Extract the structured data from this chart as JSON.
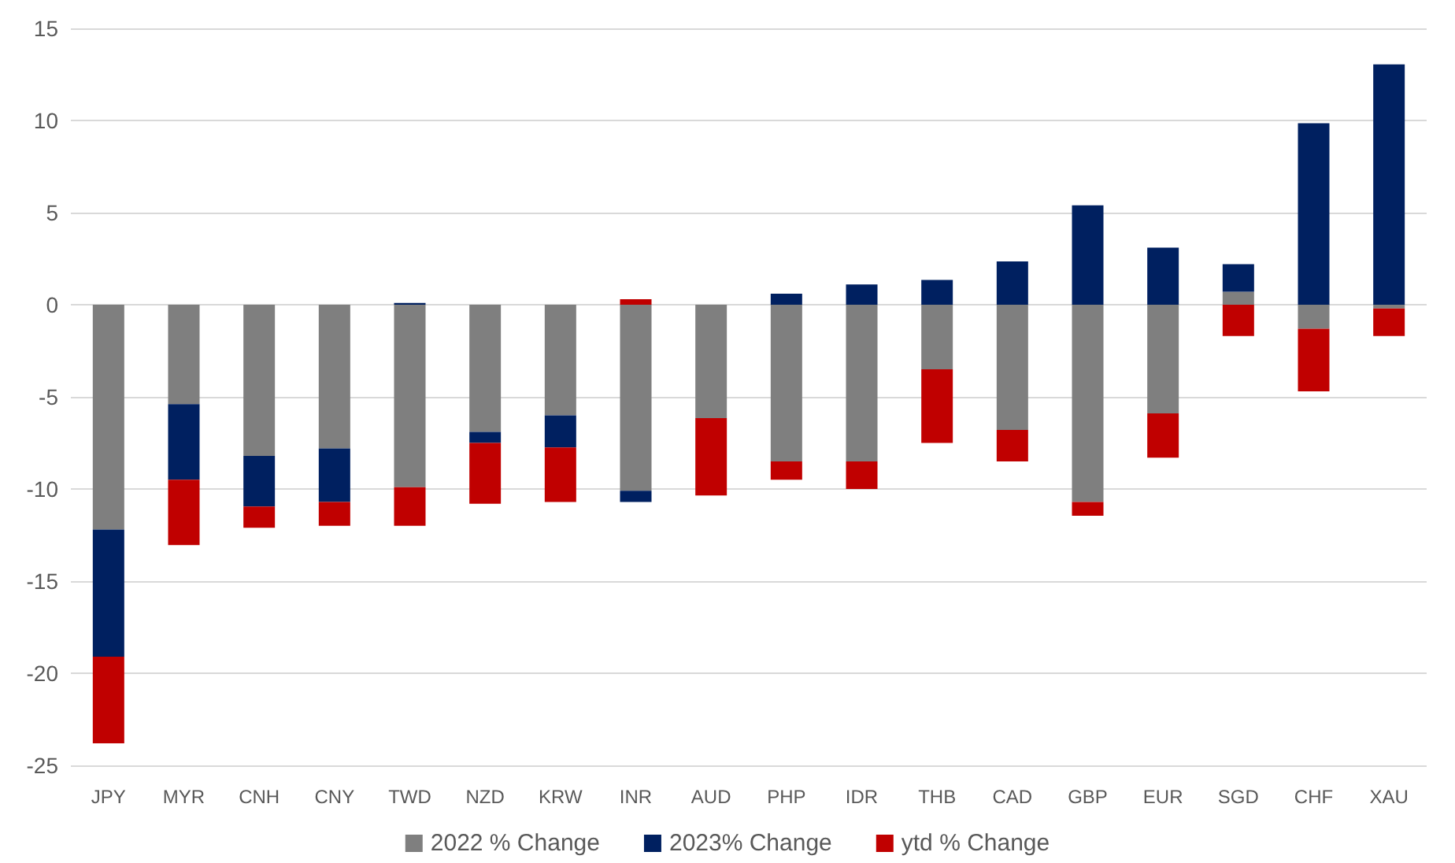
{
  "chart_data": {
    "type": "bar",
    "stacked": true,
    "categories": [
      "JPY",
      "MYR",
      "CNH",
      "CNY",
      "TWD",
      "NZD",
      "KRW",
      "INR",
      "AUD",
      "PHP",
      "IDR",
      "THB",
      "CAD",
      "GBP",
      "EUR",
      "SGD",
      "CHF",
      "XAU"
    ],
    "series": [
      {
        "name": "2022 % Change",
        "color": "#7f7f7f",
        "values": [
          -12.2,
          -5.4,
          -8.2,
          -7.8,
          -9.9,
          -6.9,
          -6.0,
          -10.1,
          -6.15,
          -8.5,
          -8.5,
          -3.5,
          -6.8,
          -10.7,
          -5.9,
          0.7,
          -1.3,
          -0.2
        ]
      },
      {
        "name": "2023% Change",
        "color": "#002060",
        "values": [
          -6.9,
          -4.1,
          -2.75,
          -2.9,
          0.1,
          -0.6,
          -1.75,
          -0.6,
          null,
          0.6,
          1.1,
          1.35,
          2.35,
          5.4,
          3.1,
          1.5,
          9.85,
          13.05
        ]
      },
      {
        "name": "ytd % Change",
        "color": "#c00000",
        "values": [
          -4.7,
          -3.55,
          -1.15,
          -1.3,
          -2.1,
          -3.3,
          -2.95,
          0.3,
          -4.2,
          -1.0,
          -1.5,
          -4.0,
          -1.7,
          -0.75,
          -2.4,
          -1.7,
          -3.4,
          -1.5
        ]
      }
    ],
    "ylim": [
      -25,
      15
    ],
    "yticks": [
      -25,
      -20,
      -15,
      -10,
      -5,
      0,
      5,
      10,
      15
    ],
    "grid": "y",
    "legend": "bottom"
  }
}
